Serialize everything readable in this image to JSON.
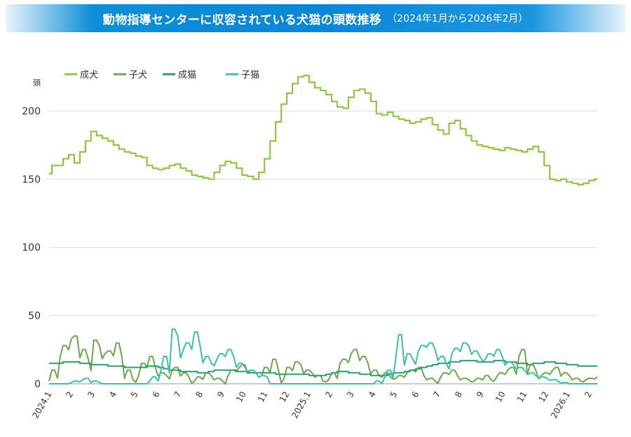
{
  "title": "動物指導センターに収容されている犬猫の頭数推移",
  "subtitle": "（2024年1月から2026年2月）",
  "chart_data": {
    "type": "line",
    "ylabel": "頭",
    "ylim": [
      0,
      230
    ],
    "yticks": [
      0,
      50,
      100,
      150,
      200
    ],
    "grid": true,
    "legend_position": "top-left",
    "xtick_labels": [
      "2024.1",
      "2",
      "3",
      "4",
      "5",
      "6",
      "7",
      "8",
      "9",
      "10",
      "11",
      "12",
      "2025.1",
      "2",
      "3",
      "4",
      "5",
      "6",
      "7",
      "8",
      "9",
      "10",
      "11",
      "12",
      "2026.1",
      "2"
    ],
    "series": [
      {
        "name": "成犬",
        "color": "#8dc63f",
        "style": "step",
        "values": [
          154,
          160,
          160,
          165,
          168,
          162,
          170,
          178,
          185,
          182,
          180,
          178,
          175,
          172,
          170,
          169,
          167,
          166,
          160,
          158,
          157,
          158,
          160,
          161,
          158,
          156,
          153,
          152,
          151,
          150,
          155,
          160,
          163,
          162,
          158,
          153,
          152,
          150,
          155,
          165,
          178,
          192,
          205,
          213,
          220,
          225,
          226,
          221,
          217,
          215,
          212,
          207,
          203,
          202,
          210,
          215,
          216,
          213,
          207,
          198,
          197,
          199,
          196,
          194,
          193,
          191,
          192,
          194,
          195,
          190,
          186,
          183,
          191,
          193,
          187,
          182,
          178,
          175,
          174,
          173,
          172,
          171,
          173,
          172,
          171,
          170,
          172,
          174,
          170,
          160,
          150,
          149,
          150,
          148,
          147,
          146,
          147,
          149,
          150
        ]
      },
      {
        "name": "子犬",
        "color": "#6aa84f",
        "style": "spiky",
        "values": [
          2,
          10,
          20,
          28,
          33,
          35,
          25,
          18,
          32,
          28,
          22,
          24,
          30,
          20,
          10,
          3,
          6,
          15,
          20,
          12,
          8,
          6,
          10,
          12,
          8,
          5,
          2,
          5,
          8,
          6,
          4,
          2,
          6,
          10,
          12,
          14,
          10,
          8,
          6,
          12,
          18,
          10,
          4,
          12,
          16,
          14,
          10,
          8,
          6,
          2,
          3,
          8,
          15,
          18,
          22,
          25,
          20,
          15,
          10,
          6,
          8,
          5,
          4,
          6,
          8,
          10,
          12,
          6,
          4,
          2,
          5,
          8,
          10,
          6,
          4,
          3,
          2,
          4,
          6,
          3,
          5,
          8,
          10,
          12,
          20,
          25,
          14,
          10,
          6,
          8,
          10,
          12,
          8,
          6,
          4,
          2,
          3,
          4,
          5
        ]
      },
      {
        "name": "成猫",
        "color": "#2e9a6e",
        "style": "step",
        "values": [
          15,
          15,
          15,
          16,
          16,
          16,
          15,
          15,
          14,
          14,
          14,
          13,
          13,
          13,
          12,
          12,
          12,
          12,
          13,
          13,
          12,
          11,
          10,
          10,
          9,
          9,
          9,
          8,
          8,
          9,
          10,
          10,
          10,
          10,
          9,
          9,
          8,
          8,
          8,
          8,
          8,
          7,
          7,
          7,
          7,
          7,
          7,
          6,
          6,
          6,
          7,
          8,
          9,
          9,
          8,
          8,
          7,
          7,
          6,
          6,
          6,
          7,
          8,
          8,
          9,
          10,
          11,
          12,
          13,
          14,
          15,
          15,
          16,
          16,
          17,
          17,
          17,
          16,
          16,
          16,
          17,
          17,
          16,
          16,
          15,
          15,
          14,
          15,
          15,
          16,
          16,
          15,
          15,
          14,
          14,
          13,
          13,
          13,
          13
        ]
      },
      {
        "name": "子猫",
        "color": "#3cc0a8",
        "style": "spiky",
        "values": [
          0,
          0,
          0,
          0,
          1,
          2,
          3,
          4,
          2,
          1,
          0,
          0,
          0,
          0,
          0,
          0,
          0,
          0,
          2,
          5,
          10,
          20,
          40,
          35,
          25,
          30,
          38,
          28,
          20,
          15,
          18,
          22,
          25,
          20,
          15,
          12,
          10,
          8,
          6,
          5,
          0,
          0,
          0,
          0,
          0,
          0,
          0,
          0,
          0,
          0,
          0,
          0,
          0,
          0,
          0,
          0,
          0,
          0,
          0,
          2,
          5,
          10,
          20,
          36,
          22,
          18,
          24,
          28,
          30,
          25,
          20,
          15,
          22,
          26,
          30,
          28,
          24,
          20,
          18,
          22,
          25,
          20,
          16,
          14,
          12,
          10,
          8,
          6,
          5,
          4,
          3,
          2,
          1,
          0,
          0,
          0,
          0,
          0,
          0
        ]
      }
    ]
  }
}
